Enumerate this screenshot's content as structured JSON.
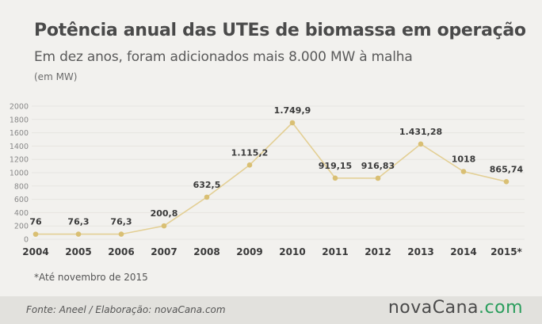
{
  "header": {
    "title": "Potência anual das UTEs de biomassa em operação",
    "subtitle": "Em dez anos, foram adicionados mais 8.000 MW à malha",
    "unit": "(em MW)"
  },
  "footnote": "*Até novembro de 2015",
  "footer": {
    "source": "Fonte:  Aneel / Elaboração:  novaCana.com",
    "logo_main": "novaCana",
    "logo_suffix": ".com"
  },
  "colors": {
    "line": "#e3cf94",
    "marker": "#d9bf73",
    "grid": "#e6e5e1",
    "axis_text": "#888888",
    "label_text": "#3a3a3a",
    "accent": "#2a9d5c"
  },
  "chart_data": {
    "type": "line",
    "categories": [
      "2004",
      "2005",
      "2006",
      "2007",
      "2008",
      "2009",
      "2010",
      "2011",
      "2012",
      "2013",
      "2014",
      "2015*"
    ],
    "values": [
      76,
      76.3,
      76.3,
      200.8,
      632.5,
      1115.2,
      1749.9,
      919.15,
      916.83,
      1431.28,
      1018,
      865.74
    ],
    "data_labels": [
      "76",
      "76,3",
      "76,3",
      "200,8",
      "632,5",
      "1.115,2",
      "1.749,9",
      "919,15",
      "916,83",
      "1.431,28",
      "1018",
      "865,74"
    ],
    "yticks": [
      "0",
      "200",
      "400",
      "600",
      "800",
      "1000",
      "1200",
      "1400",
      "1600",
      "1800",
      "2000"
    ],
    "ylim": [
      0,
      2000
    ],
    "grid": true
  }
}
